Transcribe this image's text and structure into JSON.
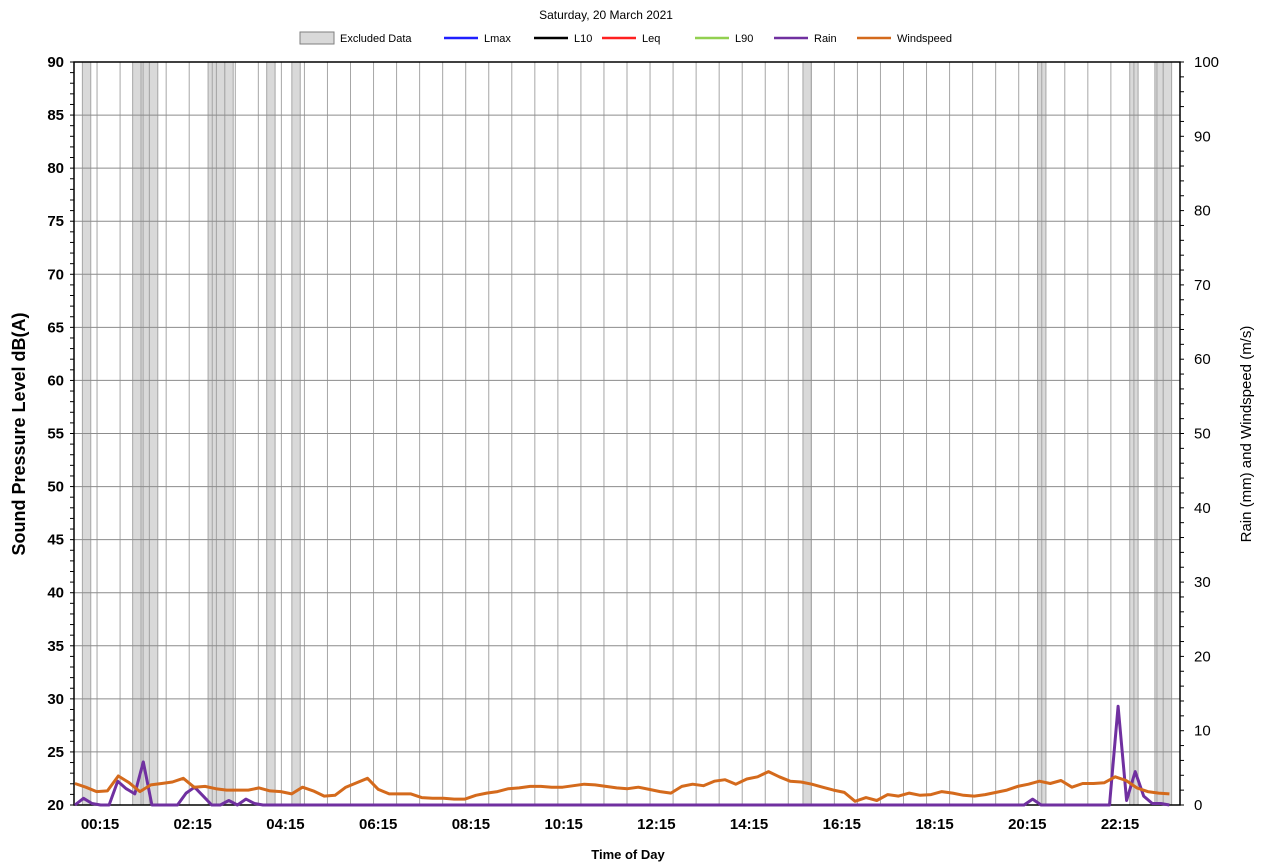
{
  "chart_data": {
    "type": "line",
    "title": "Saturday, 20 March 2021",
    "xlabel": "Time of Day",
    "ylabel": "Sound Pressure Level dB(A)",
    "y2label": "Rain (mm) and Windspeed (m/s)",
    "ylim": [
      20,
      90
    ],
    "y2lim": [
      0,
      100
    ],
    "xlim": [
      0,
      24
    ],
    "grid": true,
    "legend_placement": "top",
    "x_ticks": [
      "00:15",
      "02:15",
      "04:15",
      "06:15",
      "08:15",
      "10:15",
      "12:15",
      "14:15",
      "16:15",
      "18:15",
      "20:15",
      "22:15"
    ],
    "y_ticks": [
      20,
      25,
      30,
      35,
      40,
      45,
      50,
      55,
      60,
      65,
      70,
      75,
      80,
      85,
      90
    ],
    "y2_ticks": [
      0,
      10,
      20,
      30,
      40,
      50,
      60,
      70,
      80,
      90,
      100
    ],
    "legend": [
      {
        "name": "Excluded Data",
        "kind": "box",
        "color": "#d9d9d9"
      },
      {
        "name": "Lmax",
        "kind": "line",
        "color": "#1f1fff"
      },
      {
        "name": "L10",
        "kind": "line",
        "color": "#000000"
      },
      {
        "name": "Leq",
        "kind": "line",
        "color": "#ff2020"
      },
      {
        "name": "L90",
        "kind": "line",
        "color": "#92d050"
      },
      {
        "name": "Rain",
        "kind": "line",
        "color": "#7030a0"
      },
      {
        "name": "Windspeed",
        "kind": "line",
        "color": "#d46a1c"
      }
    ],
    "excluded_ranges": [
      [
        0.25,
        0.5
      ],
      [
        1.75,
        2.0
      ],
      [
        2.0,
        2.25
      ],
      [
        2.25,
        2.5
      ],
      [
        4.0,
        4.25
      ],
      [
        4.25,
        4.5
      ],
      [
        4.5,
        4.75
      ],
      [
        5.75,
        6.0
      ],
      [
        6.5,
        6.75
      ],
      [
        21.75,
        22.0
      ],
      [
        28.75,
        29.0
      ],
      [
        31.5,
        31.75
      ],
      [
        32.25,
        32.5
      ],
      [
        32.5,
        32.75
      ]
    ],
    "series": [
      {
        "name": "Lmax",
        "axis": "left",
        "values": []
      },
      {
        "name": "L10",
        "axis": "left",
        "values": []
      },
      {
        "name": "Leq",
        "axis": "left",
        "values": []
      },
      {
        "name": "L90",
        "axis": "left",
        "values": []
      },
      {
        "name": "Rain",
        "axis": "right",
        "x_start": 0,
        "x_step": 0.25,
        "values": [
          0,
          0.9,
          0.2,
          0,
          0,
          3.2,
          2.2,
          1.5,
          5.8,
          0,
          0,
          0,
          0,
          1.6,
          2.4,
          1.2,
          0,
          0,
          0.6,
          0,
          0.8,
          0.2,
          0,
          0,
          0,
          0,
          0,
          0,
          0,
          0,
          0,
          0,
          0,
          0,
          0,
          0,
          0,
          0,
          0,
          0,
          0,
          0,
          0,
          0,
          0,
          0,
          0,
          0,
          0,
          0,
          0,
          0,
          0,
          0,
          0,
          0,
          0,
          0,
          0,
          0,
          0,
          0,
          0,
          0,
          0,
          0,
          0,
          0,
          0,
          0,
          0,
          0,
          0,
          0,
          0,
          0,
          0,
          0,
          0,
          0,
          0,
          0,
          0,
          0,
          0,
          0,
          0,
          0,
          0,
          0,
          0,
          0,
          0,
          0,
          0,
          0,
          0,
          0,
          0,
          0,
          0,
          0,
          0,
          0,
          0,
          0,
          0,
          0,
          0,
          0,
          0,
          0,
          0.8,
          0,
          0,
          0,
          0,
          0,
          0,
          0,
          0,
          0,
          13.3,
          0.6,
          4.5,
          1.2,
          0.2,
          0.2,
          0
        ]
      },
      {
        "name": "Windspeed",
        "axis": "right",
        "x_start": 0,
        "x_step": 0.25,
        "values": [
          2.9,
          2.4,
          1.8,
          1.9,
          3.9,
          3.0,
          1.8,
          2.7,
          2.9,
          3.1,
          3.6,
          2.4,
          2.5,
          2.2,
          2.0,
          2.0,
          2.0,
          2.3,
          1.9,
          1.8,
          1.5,
          2.4,
          1.9,
          1.2,
          1.3,
          2.4,
          3.0,
          3.6,
          2.1,
          1.5,
          1.5,
          1.5,
          1.0,
          0.9,
          0.9,
          0.8,
          0.8,
          1.3,
          1.6,
          1.8,
          2.2,
          2.3,
          2.5,
          2.5,
          2.4,
          2.4,
          2.6,
          2.8,
          2.7,
          2.5,
          2.3,
          2.2,
          2.4,
          2.1,
          1.8,
          1.6,
          2.5,
          2.8,
          2.6,
          3.2,
          3.4,
          2.8,
          3.5,
          3.8,
          4.5,
          3.8,
          3.2,
          3.1,
          2.8,
          2.4,
          2.0,
          1.7,
          0.5,
          1.0,
          0.6,
          1.4,
          1.2,
          1.6,
          1.3,
          1.4,
          1.8,
          1.6,
          1.3,
          1.2,
          1.4,
          1.7,
          2.0,
          2.5,
          2.8,
          3.2,
          2.9,
          3.3,
          2.4,
          2.9,
          2.9,
          3.0,
          3.8,
          3.3,
          2.3,
          1.8,
          1.6,
          1.5
        ]
      }
    ]
  }
}
